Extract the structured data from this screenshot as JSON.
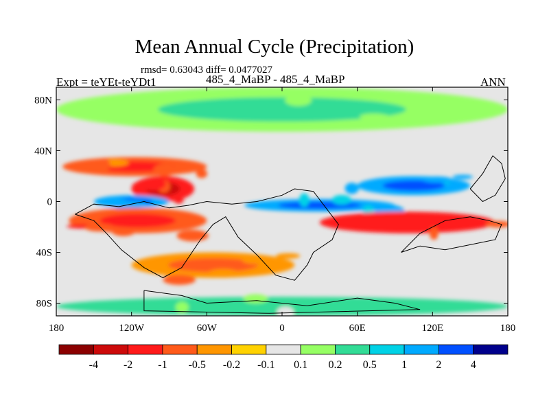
{
  "title": "Mean Annual Cycle (Precipitation)",
  "stats_text": "rmsd= 0.63043 diff= 0.0477027",
  "left_label": "Expt = teYEt-teYDt1",
  "center_label": "485_4_MaBP - 485_4_MaBP",
  "right_label": "ANN",
  "chart_data": {
    "type": "heatmap",
    "title": "Mean Annual Cycle (Precipitation)",
    "subtitle": "rmsd= 0.63043 diff= 0.0477027",
    "variable": "Precipitation difference",
    "x_range": [
      -180,
      180
    ],
    "y_range": [
      -90,
      90
    ],
    "x_ticks": [
      {
        "value": -180,
        "label": "180"
      },
      {
        "value": -120,
        "label": "120W"
      },
      {
        "value": -60,
        "label": "60W"
      },
      {
        "value": 0,
        "label": "0"
      },
      {
        "value": 60,
        "label": "60E"
      },
      {
        "value": 120,
        "label": "120E"
      },
      {
        "value": 180,
        "label": "180"
      }
    ],
    "y_ticks": [
      {
        "value": 80,
        "label": "80N"
      },
      {
        "value": 40,
        "label": "40N"
      },
      {
        "value": 0,
        "label": "0"
      },
      {
        "value": -40,
        "label": "40S"
      },
      {
        "value": -80,
        "label": "80S"
      }
    ],
    "colorbar": {
      "levels": [
        "-4",
        "-2",
        "-1",
        "-0.5",
        "-0.2",
        "-0.1",
        "0.1",
        "0.2",
        "0.5",
        "1",
        "2",
        "4"
      ],
      "colors": [
        "#8b0000",
        "#cd0a0a",
        "#ff1a1a",
        "#ff5a1a",
        "#ff9600",
        "#ffd200",
        "#e6e6e6",
        "#96ff64",
        "#32dc96",
        "#00d2e6",
        "#00aaff",
        "#0050ff",
        "#00008c"
      ]
    },
    "regions": [
      {
        "name": "north-band",
        "lon": [
          -180,
          180
        ],
        "lat": [
          55,
          90
        ],
        "value": 0.15
      },
      {
        "name": "north-mid-red",
        "lon": [
          -175,
          -60
        ],
        "lat": [
          20,
          35
        ],
        "value": -0.6
      },
      {
        "name": "central-pacific-max",
        "lon": [
          -120,
          -70
        ],
        "lat": [
          0,
          20
        ],
        "value": -1.6
      },
      {
        "name": "equatorial-blue-west",
        "lon": [
          -150,
          -90
        ],
        "lat": [
          -5,
          5
        ],
        "value": 1.3
      },
      {
        "name": "equatorial-blue-east",
        "lon": [
          -30,
          90
        ],
        "lat": [
          -8,
          2
        ],
        "value": 1.2
      },
      {
        "name": "north-east-blue",
        "lon": [
          60,
          150
        ],
        "lat": [
          5,
          20
        ],
        "value": 1.3
      },
      {
        "name": "south-band-red",
        "lon": [
          30,
          170
        ],
        "lat": [
          -25,
          -8
        ],
        "value": -1.1
      },
      {
        "name": "south-pacific-red",
        "lon": [
          -170,
          -60
        ],
        "lat": [
          -25,
          -5
        ],
        "value": -0.8
      },
      {
        "name": "south-mid-orange",
        "lon": [
          -120,
          10
        ],
        "lat": [
          -60,
          -40
        ],
        "value": -0.4
      },
      {
        "name": "antarctic-green",
        "lon": [
          -180,
          180
        ],
        "lat": [
          -90,
          -75
        ],
        "value": 0.2
      }
    ]
  }
}
